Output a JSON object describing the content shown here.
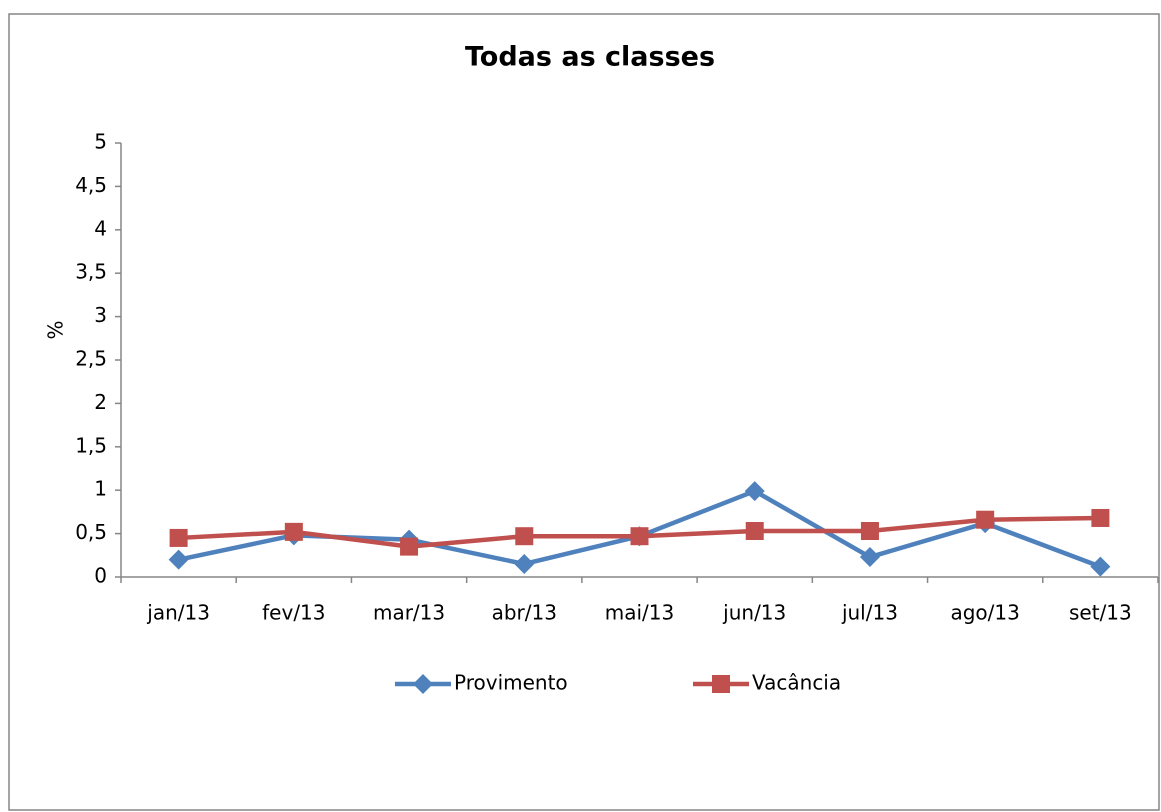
{
  "chart_data": {
    "type": "line",
    "title": "Todas as classes",
    "y_label": "%",
    "categories": [
      "jan/13",
      "fev/13",
      "mar/13",
      "abr/13",
      "mai/13",
      "jun/13",
      "jul/13",
      "ago/13",
      "set/13"
    ],
    "series": [
      {
        "name": "Provimento",
        "color": "#4f81bd",
        "marker": "diamond",
        "values": [
          0.2,
          0.48,
          0.43,
          0.15,
          0.47,
          0.99,
          0.23,
          0.62,
          0.12
        ]
      },
      {
        "name": "Vacância",
        "color": "#c0504d",
        "marker": "square",
        "values": [
          0.45,
          0.52,
          0.35,
          0.47,
          0.47,
          0.53,
          0.53,
          0.66,
          0.68
        ]
      }
    ],
    "ylim": [
      0,
      5
    ],
    "yticks": [
      0,
      {
        "value": 0.5,
        "label": "0,5"
      },
      1,
      {
        "value": 1.5,
        "label": "1,5"
      },
      2,
      {
        "value": 2.5,
        "label": "2,5"
      },
      3,
      {
        "value": 3.5,
        "label": "3,5"
      },
      4,
      {
        "value": 4.5,
        "label": "4,5"
      },
      5
    ],
    "grid": false,
    "legend": "bottom"
  }
}
